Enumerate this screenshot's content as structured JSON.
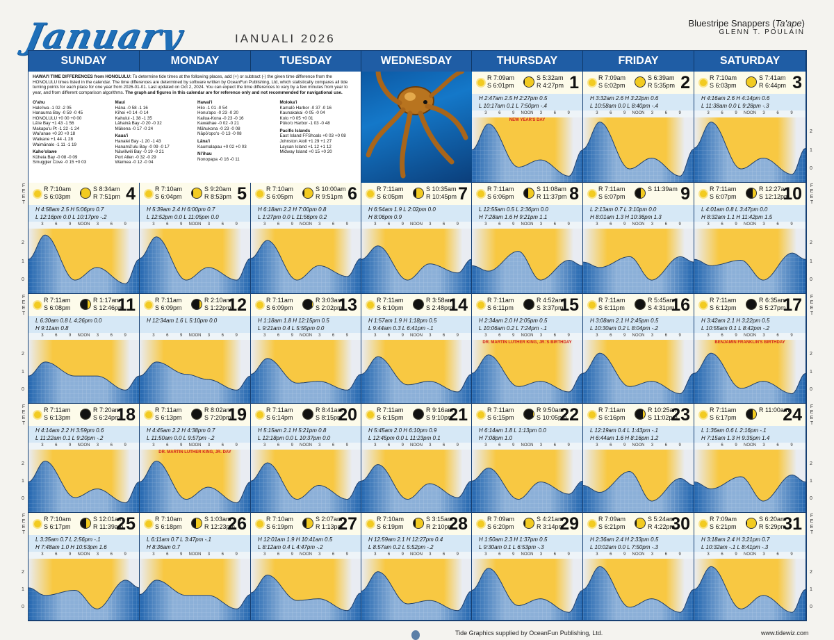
{
  "header": {
    "month": "January",
    "hawaiian_month": "IANUALI  2026",
    "photo_title": "Bluestripe Snappers (",
    "photo_title_italic": "Ta'ape",
    "photo_title_end": ")",
    "author": "GLENN T. POULAIN"
  },
  "weekdays": [
    "SUNDAY",
    "MONDAY",
    "TUESDAY",
    "WEDNESDAY",
    "THURSDAY",
    "FRIDAY",
    "SATURDAY"
  ],
  "hour_labels": [
    "3",
    "6",
    "9",
    "NOON",
    "3",
    "6",
    "9"
  ],
  "axis": {
    "feet_label": "FEET",
    "ticks": [
      "2",
      "1",
      "0"
    ]
  },
  "info": {
    "title": "HAWAI'I TIME DIFFERENCES from HONOLULU:",
    "body": "To determine tide times at the following places, add (+) or subtract (-) the given time difference from the HONOLULU times listed in the calendar. The time differences are determined by software written by OceanFun Publishing, Ltd, which statistically compares all tide turning points for each place for one year from 2026-01-01. Last updated on Oct 2, 2024. You can expect the time differences to vary by a few minutes from year to year, and from different comparison algorithms.",
    "bold_note": "The graph and figures in this calendar are for reference only and not recommended for navigational use.",
    "columns": [
      {
        "groups": [
          {
            "name": "O'ahu",
            "rows": [
              "Hale'iwa  -1 02  -2 05",
              "Hanauma Bay  -0 59  -0 45",
              "HONOLULU  +0 00  +0 00",
              "Lā'ie Bay  +1 43  -1 56",
              "Makapu'u Pt  -1 22  -1 24",
              "Wai'anae  +0 20  +0 18",
              "Waikane  +1 44  -1 28",
              "Waimānalo  -1 11  -1 19"
            ]
          },
          {
            "name": "Kaho'olawe",
            "rows": [
              "Kūheia Bay  -0 08  -0 09",
              "Smuggler Cove  -0 15  +0 03"
            ]
          }
        ]
      },
      {
        "groups": [
          {
            "name": "Maui",
            "rows": [
              "Hāna  -0 58  -1 16",
              "Kīhei  +0 14  -0 14",
              "Kahului  -1 38  -1 35",
              "Lāhainā Bay  -0 20  -0 32",
              "Mākena  -0 17  -0 24"
            ]
          },
          {
            "name": "Kaua'i",
            "rows": [
              "Hanalei Bay  -1 20  -1 43",
              "Hanamā'ulu Bay  -0 09  -0 17",
              "Nāwiliwili Bay  -0 19  -0 21",
              "Port Allen  -0 32  -0 29",
              "Waimea  -0 12  -0 04"
            ]
          }
        ]
      },
      {
        "groups": [
          {
            "name": "Hawai'i",
            "rows": [
              "Hilo  -1 01  -0 54",
              "Honu'apo  -0 23  -0 20",
              "Kailua-Kona  -0 23  -0 16",
              "Kawaihae  -0 02  -0 21",
              "Māhukona  -0 23  -0 08",
              "Nāpō'opo'o  -0 13  -0 08"
            ]
          },
          {
            "name": "Lāna'i",
            "rows": [
              "Kaumalapau  +0 02  +0 03"
            ]
          },
          {
            "name": "Ni'ihau",
            "rows": [
              "Nonopapa  -0 16  -0 11"
            ]
          }
        ]
      },
      {
        "groups": [
          {
            "name": "Moloka'i",
            "rows": [
              "Kamalō Harbor  -0 37  -0 16",
              "Kaunakakai  -0 05  -0 04",
              "Kolo  +0 05  +0 01",
              "Pūko'o Harbor  -1 03  -0 48"
            ]
          },
          {
            "name": "Pacific Islands",
            "rows": [
              "East Island FFShoals  +0 03  +0 08",
              "Johnston Atoll  +1 29  +1 27",
              "Laysan Island  +1 12  +1 12",
              "Midway Island  +0 15  +0 20"
            ]
          }
        ]
      }
    ]
  },
  "days": [
    {
      "d": 1,
      "col": 4,
      "row": 0,
      "R": "R 7:09am",
      "S": "S 6:01pm",
      "m1": "S 5:32am",
      "m2": "R 4:27pm",
      "phase": 0.95,
      "t1": "H  2:47am  2.5    H  2:27pm  0.5",
      "t2": "L  10:17am  0.1   L  7:50pm  -.4",
      "hol": "NEW YEAR'S DAY",
      "tide": [
        2.5,
        0.1,
        0.5,
        -0.4
      ]
    },
    {
      "d": 2,
      "col": 5,
      "row": 0,
      "R": "R 7:09am",
      "S": "S 6:02pm",
      "m1": "S 6:39am",
      "m2": "R 5:35pm",
      "phase": 1.0,
      "t1": "H  3:32am  2.6    H  3:22pm  0.6",
      "t2": "L  10:58am  0.0   L  8:40pm  -.4",
      "hol": "",
      "tide": [
        2.6,
        0.0,
        0.6,
        -0.4
      ]
    },
    {
      "d": 3,
      "col": 6,
      "row": 0,
      "R": "R 7:10am",
      "S": "S 6:03pm",
      "m1": "S 7:41am",
      "m2": "R 6:44pm",
      "phase": 1.0,
      "t1": "H  4:16am  2.6    H  4:14pm  0.6",
      "t2": "L  11:38am  0.0   L  9:28pm  -.3",
      "hol": "",
      "tide": [
        2.6,
        0.0,
        0.6,
        -0.3
      ]
    },
    {
      "d": 4,
      "col": 0,
      "row": 1,
      "R": "R 7:10am",
      "S": "S 6:03pm",
      "m1": "S 8:34am",
      "m2": "R 7:51pm",
      "phase": 0.95,
      "t1": "H  4:58am  2.5    H  5:06pm  0.7",
      "t2": "L  12:16pm  0.0   L  10:17pm  -.2",
      "hol": "",
      "tide": [
        2.5,
        0.0,
        0.7,
        -0.2
      ]
    },
    {
      "d": 5,
      "col": 1,
      "row": 1,
      "R": "R 7:10am",
      "S": "S 6:04pm",
      "m1": "S 9:20am",
      "m2": "R 8:53pm",
      "phase": 0.9,
      "t1": "H  5:39am  2.4    H  6:00pm  0.7",
      "t2": "L  12:52pm  0.0   L  11:05pm  0.0",
      "hol": "",
      "tide": [
        2.4,
        0.0,
        0.7,
        0.0
      ]
    },
    {
      "d": 6,
      "col": 2,
      "row": 1,
      "R": "R 7:10am",
      "S": "S 6:05pm",
      "m1": "S 10:00am",
      "m2": "R 9:51pm",
      "phase": 0.85,
      "t1": "H  6:18am  2.2    H  7:00pm  0.8",
      "t2": "L  1:27pm  0.0   L  11:56pm  0.2",
      "hol": "",
      "tide": [
        2.2,
        0.0,
        0.8,
        0.2
      ]
    },
    {
      "d": 7,
      "col": 3,
      "row": 1,
      "R": "R 7:11am",
      "S": "S 6:05pm",
      "m1": "S 10:35am",
      "m2": "R 10:45pm",
      "phase": 0.75,
      "t1": "H  6:54am  1.9    L  2:02pm  0.0",
      "t2": "                         H  8:06pm  0.9",
      "hol": "",
      "tide": [
        1.9,
        0.0,
        0.9,
        0.4
      ]
    },
    {
      "d": 8,
      "col": 4,
      "row": 1,
      "R": "R 7:11am",
      "S": "S 6:06pm",
      "m1": "S 11:08am",
      "m2": "R 11:37pm",
      "phase": 0.6,
      "t1": "L  12:55am  0.5    L  2:36pm  0.0",
      "t2": "H  7:28am  1.6    H  9:21pm  1.1",
      "hol": "",
      "tide": [
        0.5,
        1.6,
        0.0,
        1.1
      ]
    },
    {
      "d": 9,
      "col": 5,
      "row": 1,
      "R": "R 7:11am",
      "S": "S 6:07pm",
      "m1": "S 11:39am",
      "m2": "",
      "phase": 0.5,
      "t1": "L  2:13am  0.7    L  3:10pm  0.0",
      "t2": "H  8:01am  1.3    H  10:36pm  1.3",
      "hol": "",
      "tide": [
        0.7,
        1.3,
        0.0,
        1.3
      ]
    },
    {
      "d": 10,
      "col": 6,
      "row": 1,
      "R": "R 7:11am",
      "S": "S 6:07pm",
      "m1": "R 12:27am",
      "m2": "S 12:12pm",
      "phase": 0.45,
      "t1": "L  4:01am  0.8    L  3:47pm  0.0",
      "t2": "H  8:32am  1.1    H  11:42pm  1.5",
      "hol": "",
      "tide": [
        0.8,
        1.1,
        0.0,
        1.5
      ]
    },
    {
      "d": 11,
      "col": 0,
      "row": 2,
      "R": "R 7:11am",
      "S": "S 6:08pm",
      "m1": "R 1:17am",
      "m2": "S 12:46pm",
      "phase": 0.4,
      "t1": "L  6:30am  0.8    L  4:26pm  0.0",
      "t2": "H  9:11am  0.8",
      "hol": "",
      "tide": [
        1.6,
        0.8,
        0.8,
        0.0
      ]
    },
    {
      "d": 12,
      "col": 1,
      "row": 2,
      "R": "R 7:11am",
      "S": "S 6:09pm",
      "m1": "R 2:10am",
      "m2": "S 1:22pm",
      "phase": 0.3,
      "t1": "H  12:34am  1.6    L  5:10pm  0.0",
      "t2": "",
      "hol": "",
      "tide": [
        1.6,
        0.9,
        0.6,
        0.0
      ]
    },
    {
      "d": 13,
      "col": 2,
      "row": 2,
      "R": "R 7:11am",
      "S": "S 6:09pm",
      "m1": "R 3:03am",
      "m2": "S 2:02pm",
      "phase": 0.2,
      "t1": "H  1:18am  1.8    H  12:15pm  0.5",
      "t2": "L  9:21am  0.4    L  5:55pm  0.0",
      "hol": "",
      "tide": [
        1.8,
        0.4,
        0.5,
        0.0
      ]
    },
    {
      "d": 14,
      "col": 3,
      "row": 2,
      "R": "R 7:11am",
      "S": "S 6:10pm",
      "m1": "R 3:58am",
      "m2": "S 2:48pm",
      "phase": 0.15,
      "t1": "H  1:57am  1.9    H  1:18pm  0.5",
      "t2": "L  9:44am  0.3    L  6:41pm  -.1",
      "hol": "",
      "tide": [
        1.9,
        0.3,
        0.5,
        -0.1
      ]
    },
    {
      "d": 15,
      "col": 4,
      "row": 2,
      "R": "R 7:11am",
      "S": "S 6:11pm",
      "m1": "R 4:52am",
      "m2": "S 3:37pm",
      "phase": 0.08,
      "t1": "H  2:34am  2.0    H  2:05pm  0.5",
      "t2": "L  10:06am  0.2    L  7:24pm  -.1",
      "hol": "DR. MARTIN LUTHER KING, JR.'S BIRTHDAY",
      "tide": [
        2.0,
        0.2,
        0.5,
        -0.1
      ]
    },
    {
      "d": 16,
      "col": 5,
      "row": 2,
      "R": "R 7:11am",
      "S": "S 6:11pm",
      "m1": "R 5:45am",
      "m2": "S 4:31pm",
      "phase": 0.04,
      "t1": "H  3:08am  2.1    H  2:45pm  0.5",
      "t2": "L  10:30am  0.2    L  8:04pm  -.2",
      "hol": "",
      "tide": [
        2.1,
        0.2,
        0.5,
        -0.2
      ]
    },
    {
      "d": 17,
      "col": 6,
      "row": 2,
      "R": "R 7:11am",
      "S": "S 6:12pm",
      "m1": "R 6:35am",
      "m2": "S 5:27pm",
      "phase": 0.02,
      "t1": "H  3:42am  2.1    H  3:22pm  0.5",
      "t2": "L  10:55am  0.1    L  8:42pm  -.2",
      "hol": "BENJAMIN FRANKLIN'S BIRTHDAY",
      "tide": [
        2.1,
        0.1,
        0.5,
        -0.2
      ]
    },
    {
      "d": 18,
      "col": 0,
      "row": 3,
      "R": "R 7:11am",
      "S": "S 6:13pm",
      "m1": "R 7:20am",
      "m2": "S 6:24pm",
      "phase": 0.0,
      "t1": "H  4:14am  2.2    H  3:59pm  0.6",
      "t2": "L  11:22am  0.1    L  9:20pm  -.2",
      "hol": "",
      "tide": [
        2.2,
        0.1,
        0.6,
        -0.2
      ]
    },
    {
      "d": 19,
      "col": 1,
      "row": 3,
      "R": "R 7:11am",
      "S": "S 6:13pm",
      "m1": "R 8:02am",
      "m2": "S 7:20pm",
      "phase": 0.02,
      "t1": "H  4:45am  2.2    H  4:38pm  0.7",
      "t2": "L  11:50am  0.0    L  9:57pm  -.2",
      "hol": "DR. MARTIN LUTHER KING, JR. DAY",
      "tide": [
        2.2,
        0.0,
        0.7,
        -0.2
      ]
    },
    {
      "d": 20,
      "col": 2,
      "row": 3,
      "R": "R 7:11am",
      "S": "S 6:14pm",
      "m1": "R 8:41am",
      "m2": "S 8:15pm",
      "phase": 0.05,
      "t1": "H  5:15am  2.1    H  5:21pm  0.8",
      "t2": "L  12:18pm  0.0    L  10:37pm  0.0",
      "hol": "",
      "tide": [
        2.1,
        0.0,
        0.8,
        0.0
      ]
    },
    {
      "d": 21,
      "col": 3,
      "row": 3,
      "R": "R 7:11am",
      "S": "S 6:15pm",
      "m1": "R 9:16am",
      "m2": "S 9:10pm",
      "phase": 0.1,
      "t1": "H  5:45am  2.0    H  6:10pm  0.9",
      "t2": "L  12:45pm  0.0    L  11:23pm  0.1",
      "hol": "",
      "tide": [
        2.0,
        0.0,
        0.9,
        0.1
      ]
    },
    {
      "d": 22,
      "col": 4,
      "row": 3,
      "R": "R 7:11am",
      "S": "S 6:15pm",
      "m1": "R 9:50am",
      "m2": "S 10:05pm",
      "phase": 0.18,
      "t1": "H  6:14am  1.8    L  1:13pm  0.0",
      "t2": "                         H  7:08pm  1.0",
      "hol": "",
      "tide": [
        1.8,
        0.0,
        1.0,
        0.3
      ]
    },
    {
      "d": 23,
      "col": 5,
      "row": 3,
      "R": "R 7:11am",
      "S": "S 6:16pm",
      "m1": "R 10:25am",
      "m2": "S 11:02pm",
      "phase": 0.3,
      "t1": "L  12:19am  0.4    L  1:43pm  -.1",
      "t2": "H  6:44am  1.6    H  8:16pm  1.2",
      "hol": "",
      "tide": [
        0.4,
        1.6,
        -0.1,
        1.2
      ]
    },
    {
      "d": 24,
      "col": 6,
      "row": 3,
      "R": "R 7:11am",
      "S": "S 6:17pm",
      "m1": "R 11:00am",
      "m2": "",
      "phase": 0.45,
      "t1": "L  1:36am  0.6    L  2:16pm  -.1",
      "t2": "H  7:15am  1.3    H  9:35pm  1.4",
      "hol": "",
      "tide": [
        0.6,
        1.3,
        -0.1,
        1.4
      ]
    },
    {
      "d": 25,
      "col": 0,
      "row": 4,
      "R": "R 7:10am",
      "S": "S 6:17pm",
      "m1": "S 12:01am",
      "m2": "R 11:39am",
      "phase": 0.5,
      "t1": "L  3:35am  0.7    L  2:56pm  -.1",
      "t2": "H  7:48am  1.0    H  10:53pm  1.6",
      "hol": "",
      "tide": [
        0.7,
        1.0,
        -0.1,
        1.6
      ]
    },
    {
      "d": 26,
      "col": 1,
      "row": 4,
      "R": "R 7:10am",
      "S": "S 6:18pm",
      "m1": "S 1:03am",
      "m2": "R 12:23pm",
      "phase": 0.6,
      "t1": "L  6:11am  0.7    L  3:47pm  -.1",
      "t2": "H  8:36am  0.7",
      "hol": "",
      "tide": [
        1.6,
        0.7,
        0.7,
        -0.1
      ]
    },
    {
      "d": 27,
      "col": 2,
      "row": 4,
      "R": "R 7:10am",
      "S": "S 6:19pm",
      "m1": "S 2:07am",
      "m2": "R 1:13pm",
      "phase": 0.7,
      "t1": "H  12:01am  1.9    H  10:41am  0.5",
      "t2": "L  8:12am  0.4    L  4:47pm  -.2",
      "hol": "",
      "tide": [
        1.9,
        0.4,
        0.5,
        -0.2
      ]
    },
    {
      "d": 28,
      "col": 3,
      "row": 4,
      "R": "R 7:10am",
      "S": "S 6:19pm",
      "m1": "S 3:15am",
      "m2": "R 2:10pm",
      "phase": 0.8,
      "t1": "H  12:59am  2.1    H  12:27pm  0.4",
      "t2": "L  8:57am  0.2    L  5:52pm  -.2",
      "hol": "",
      "tide": [
        2.1,
        0.2,
        0.4,
        -0.2
      ]
    },
    {
      "d": 29,
      "col": 4,
      "row": 4,
      "R": "R 7:09am",
      "S": "S 6:20pm",
      "m1": "S 4:21am",
      "m2": "R 3:14pm",
      "phase": 0.85,
      "t1": "H  1:50am  2.3    H  1:37pm  0.5",
      "t2": "L  9:30am  0.1    L  6:53pm  -.3",
      "hol": "",
      "tide": [
        2.3,
        0.1,
        0.5,
        -0.3
      ]
    },
    {
      "d": 30,
      "col": 5,
      "row": 4,
      "R": "R 7:09am",
      "S": "S 6:21pm",
      "m1": "S 5:24am",
      "m2": "R 4:22pm",
      "phase": 0.9,
      "t1": "H  2:36am  2.4    H  2:33pm  0.5",
      "t2": "L  10:02am  0.0    L  7:50pm  -.3",
      "hol": "",
      "tide": [
        2.4,
        0.0,
        0.5,
        -0.3
      ]
    },
    {
      "d": 31,
      "col": 6,
      "row": 4,
      "R": "R 7:09am",
      "S": "S 6:21pm",
      "m1": "S 6:20am",
      "m2": "R 5:29pm",
      "phase": 0.95,
      "t1": "H  3:18am  2.4    H  3:21pm  0.7",
      "t2": "L  10:32am  -.1    L  8:41pm  -.3",
      "hol": "",
      "tide": [
        2.4,
        -0.1,
        0.7,
        -0.3
      ]
    }
  ],
  "footer": {
    "credit": "Tide Graphics supplied by OceanFun Publishing, Ltd.",
    "url": "www.tidewiz.com"
  }
}
